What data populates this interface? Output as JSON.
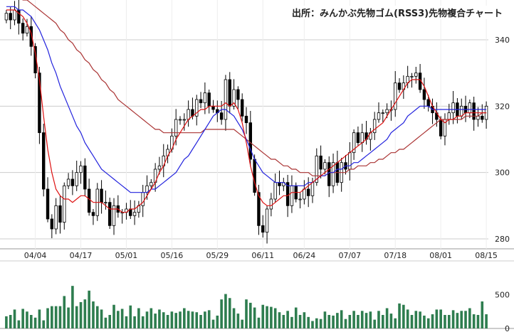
{
  "source_label": "出所：みんかぶ先物ゴム(RSS3)先物複合チャート",
  "colors": {
    "bull": "#ffffff",
    "bear": "#000000",
    "ma_short": "#dd1111",
    "ma_mid": "#2222dd",
    "ma_long": "#aa3333",
    "volume": "#2e7d4f",
    "grid": "#cccccc"
  },
  "chart_data": [
    {
      "type": "candlestick",
      "title": "",
      "y_ticks": [
        "280",
        "300",
        "320",
        "340"
      ],
      "x_ticks": [
        "04/04",
        "04/17",
        "05/01",
        "05/16",
        "05/29",
        "06/11",
        "06/24",
        "07/07",
        "07/18",
        "08/01",
        "08/15"
      ],
      "ylim": [
        277,
        352
      ],
      "close": [
        348,
        346,
        349,
        345,
        342,
        344,
        338,
        330,
        312,
        295,
        286,
        283,
        290,
        285,
        296,
        298,
        296,
        300,
        302,
        295,
        288,
        287,
        295,
        291,
        291,
        284,
        290,
        288,
        288,
        289,
        287,
        288,
        290,
        294,
        296,
        297,
        301,
        302,
        305,
        307,
        311,
        316,
        316,
        316,
        319,
        317,
        322,
        321,
        324,
        320,
        319,
        318,
        316,
        328,
        320,
        325,
        322,
        317,
        315,
        304,
        294,
        284,
        282,
        289,
        292,
        297,
        296,
        297,
        290,
        296,
        292,
        292,
        295,
        293,
        297,
        305,
        301,
        303,
        296,
        303,
        297,
        303,
        301,
        306,
        312,
        309,
        312,
        310,
        312,
        316,
        318,
        318,
        319,
        319,
        327,
        325,
        327,
        329,
        329,
        330,
        325,
        322,
        320,
        318,
        316,
        311,
        316,
        318,
        321,
        317,
        320,
        318,
        321,
        316,
        317,
        316,
        320
      ],
      "ma_short": [
        349,
        349,
        349,
        348,
        347,
        345,
        342,
        336,
        328,
        317,
        307,
        300,
        295,
        293,
        292,
        292,
        291,
        292,
        293,
        293,
        292,
        291,
        291,
        291,
        290,
        289,
        289,
        289,
        288,
        288,
        289,
        289,
        290,
        291,
        293,
        295,
        297,
        300,
        302,
        305,
        307,
        310,
        312,
        314,
        316,
        317,
        318,
        319,
        319,
        320,
        320,
        320,
        320,
        321,
        320,
        321,
        319,
        315,
        309,
        302,
        297,
        293,
        291,
        290,
        290,
        291,
        292,
        293,
        293,
        294,
        294,
        294,
        295,
        296,
        297,
        298,
        299,
        300,
        301,
        302,
        303,
        304,
        305,
        306,
        307,
        308,
        309,
        310,
        312,
        313,
        314,
        315,
        317,
        319,
        321,
        323,
        325,
        327,
        328,
        328,
        328,
        326,
        323,
        320,
        318,
        316,
        315,
        316,
        316,
        317,
        317,
        318,
        318,
        318,
        318,
        318,
        318
      ],
      "ma_mid": [
        350,
        350,
        350,
        349,
        349,
        348,
        347,
        345,
        343,
        340,
        337,
        333,
        330,
        326,
        323,
        320,
        317,
        314,
        312,
        309,
        307,
        305,
        303,
        301,
        300,
        299,
        298,
        297,
        296,
        295,
        294,
        294,
        294,
        294,
        294,
        295,
        295,
        296,
        297,
        298,
        299,
        300,
        302,
        304,
        305,
        307,
        309,
        311,
        313,
        315,
        317,
        318,
        319,
        319,
        318,
        317,
        315,
        313,
        310,
        307,
        304,
        302,
        300,
        299,
        298,
        297,
        297,
        297,
        296,
        296,
        296,
        296,
        296,
        297,
        297,
        298,
        299,
        299,
        300,
        300,
        301,
        301,
        302,
        302,
        303,
        303,
        304,
        305,
        306,
        307,
        308,
        309,
        310,
        312,
        313,
        314,
        315,
        317,
        318,
        319,
        320,
        320,
        320,
        319,
        319,
        319,
        319,
        319,
        319,
        319,
        319,
        319,
        319,
        319,
        319,
        319,
        319
      ],
      "ma_long": [
        356,
        355,
        354,
        353,
        352,
        352,
        351,
        350,
        349,
        348,
        347,
        346,
        345,
        343,
        342,
        340,
        339,
        337,
        336,
        334,
        333,
        331,
        330,
        328,
        327,
        325,
        324,
        322,
        321,
        320,
        319,
        318,
        317,
        316,
        315,
        314,
        313,
        313,
        312,
        312,
        312,
        312,
        312,
        312,
        312,
        312,
        312,
        312,
        313,
        313,
        313,
        313,
        313,
        313,
        313,
        313,
        312,
        311,
        310,
        309,
        308,
        307,
        306,
        305,
        304,
        304,
        303,
        302,
        302,
        301,
        301,
        300,
        300,
        300,
        299,
        299,
        299,
        299,
        300,
        300,
        300,
        300,
        300,
        301,
        301,
        302,
        302,
        302,
        303,
        303,
        304,
        304,
        305,
        306,
        306,
        307,
        307,
        308,
        309,
        310,
        311,
        312,
        313,
        314,
        315,
        316,
        316,
        316,
        316,
        316,
        316,
        317,
        317,
        317,
        317,
        318,
        318
      ]
    },
    {
      "type": "bar",
      "title": "",
      "y_ticks": [
        "0",
        "500"
      ],
      "ylim": [
        0,
        1000
      ],
      "values": [
        180,
        200,
        280,
        120,
        290,
        250,
        200,
        160,
        280,
        120,
        300,
        330,
        330,
        330,
        480,
        310,
        630,
        330,
        390,
        430,
        560,
        400,
        330,
        280,
        160,
        200,
        350,
        260,
        290,
        180,
        340,
        180,
        300,
        180,
        250,
        300,
        220,
        280,
        240,
        200,
        250,
        230,
        250,
        300,
        260,
        250,
        240,
        200,
        250,
        270,
        130,
        190,
        430,
        510,
        450,
        300,
        220,
        130,
        430,
        380,
        310,
        160,
        350,
        330,
        320,
        300,
        240,
        200,
        260,
        170,
        310,
        200,
        240,
        170,
        110,
        150,
        140,
        250,
        200,
        190,
        230,
        270,
        140,
        200,
        260,
        200,
        260,
        230,
        250,
        130,
        260,
        200,
        300,
        220,
        150,
        370,
        350,
        280,
        200,
        260,
        250,
        190,
        150,
        210,
        280,
        280,
        200,
        200,
        270,
        230,
        260,
        260,
        300,
        210,
        200,
        400,
        210
      ]
    }
  ]
}
